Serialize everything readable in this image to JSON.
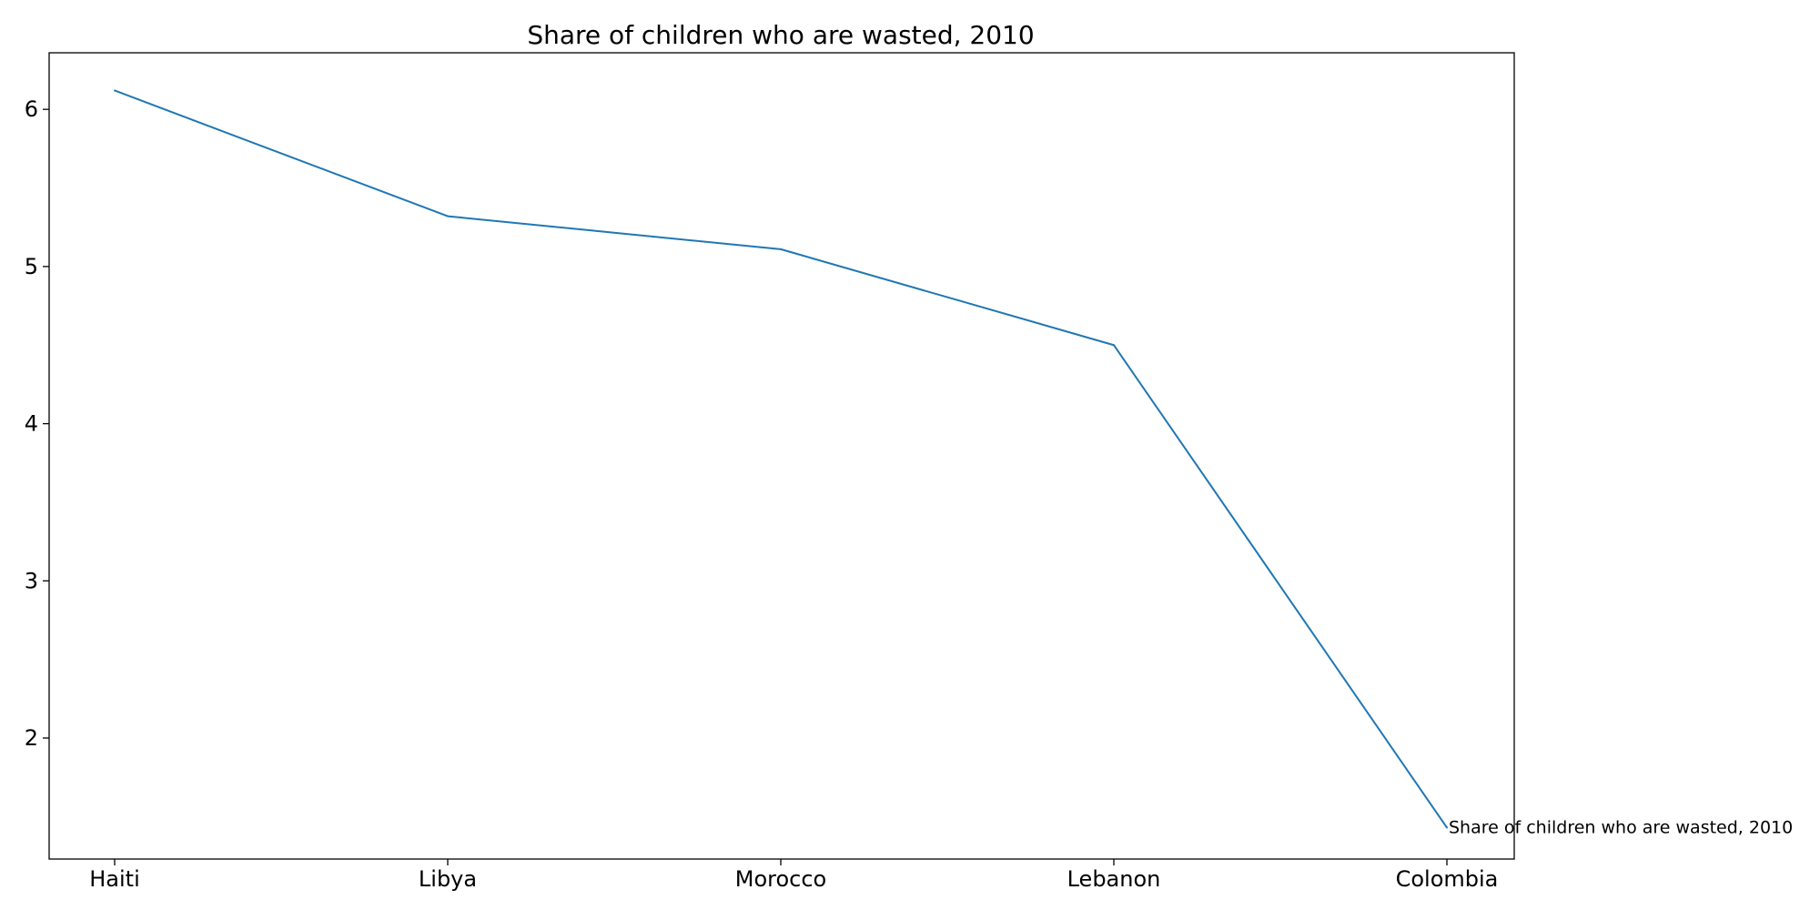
{
  "chart_data": {
    "type": "line",
    "title": "Share of children who are wasted, 2010",
    "xlabel": "",
    "ylabel": "",
    "categories": [
      "Haiti",
      "Libya",
      "Morocco",
      "Lebanon",
      "Colombia"
    ],
    "series": [
      {
        "name": "Share of children who are wasted, 2010",
        "values": [
          6.12,
          5.32,
          5.11,
          4.5,
          1.43
        ],
        "color": "#1f77b4"
      }
    ],
    "ylim": [
      1.23,
      6.36
    ],
    "yticks": [
      2,
      3,
      4,
      5,
      6
    ],
    "grid": false,
    "legend": "none"
  }
}
